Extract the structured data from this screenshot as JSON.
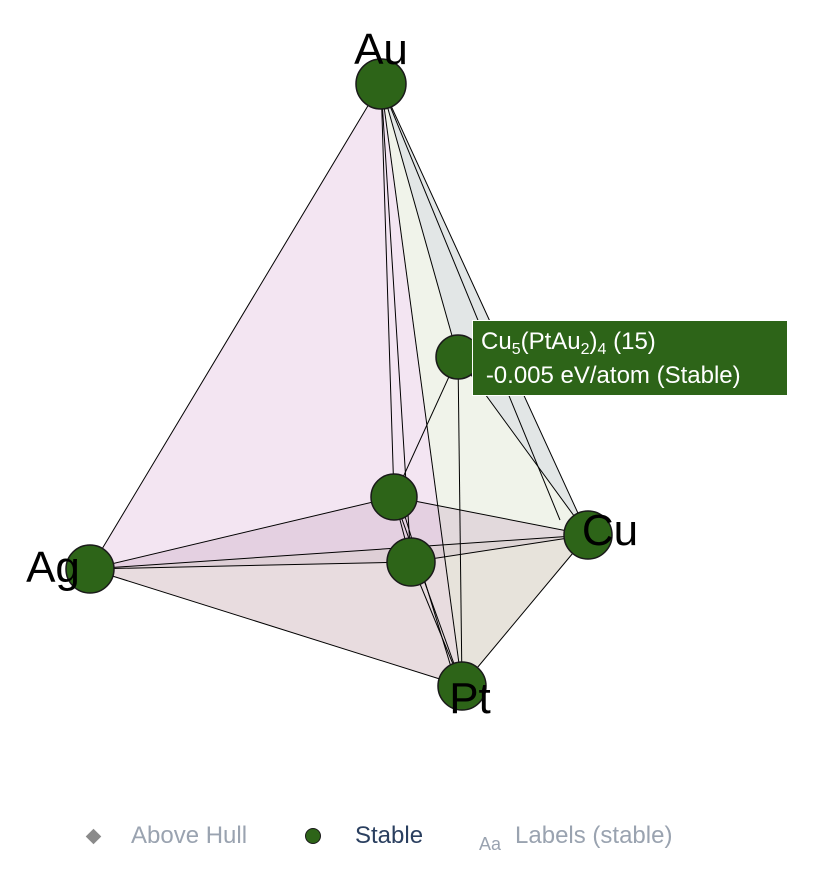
{
  "vertices": {
    "au": "Au",
    "ag": "Ag",
    "cu": "Cu",
    "pt": "Pt"
  },
  "tooltip": {
    "formula_parts": [
      "Cu",
      "5",
      "(PtAu",
      "2",
      ")",
      "4",
      " (15)"
    ],
    "energy": "-0.005 eV/atom (Stable)"
  },
  "legend": {
    "above_hull": "Above Hull",
    "stable": "Stable",
    "labels_icon": "Aa",
    "labels": "Labels (stable)"
  },
  "colors": {
    "stable_marker": "#2d6418",
    "face_ag_au_pt": "#e8cce6",
    "face_ag_cu_pt": "#ded3cc",
    "face_au_cu_pt": "#d4dec4",
    "face_back": "#c9cfe0"
  }
}
